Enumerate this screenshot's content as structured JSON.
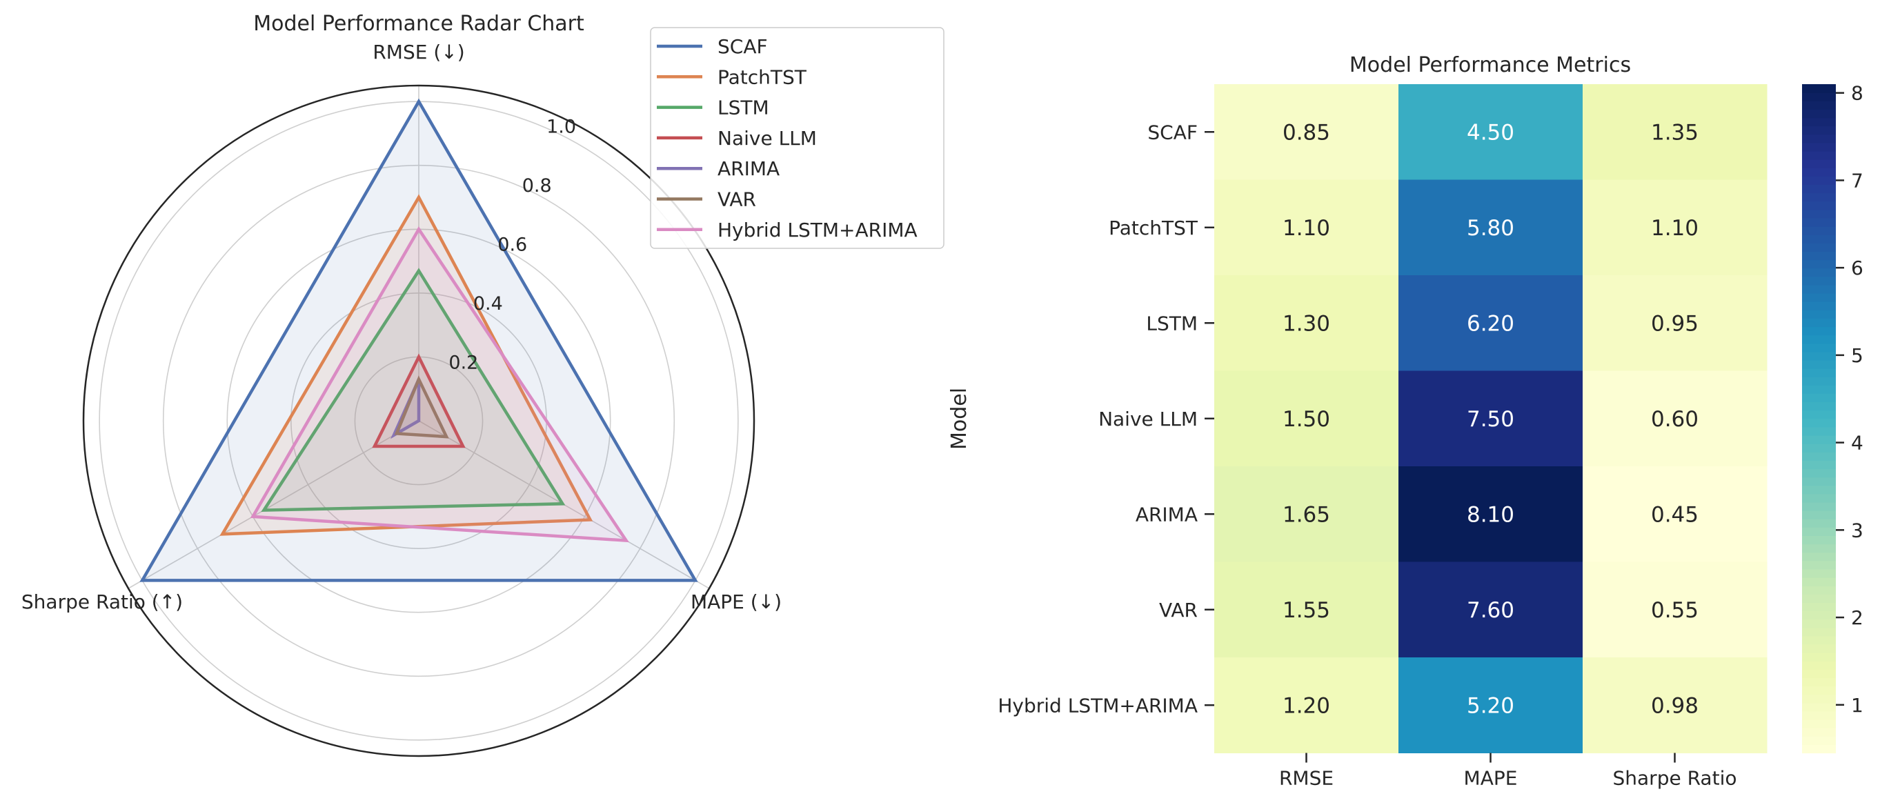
{
  "chart_data": [
    {
      "type": "radar",
      "title": "Model Performance Radar Chart",
      "axes": [
        "RMSE (↓)",
        "MAPE (↓)",
        "Sharpe Ratio (↑)"
      ],
      "radial_ticks": [
        "0.2",
        "0.4",
        "0.6",
        "0.8",
        "1.0"
      ],
      "radial_tick_values": [
        0.2,
        0.4,
        0.6,
        0.8,
        1.0
      ],
      "rmax": 1.05,
      "grid": true,
      "legend_position": "top-right",
      "series": [
        {
          "name": "SCAF",
          "color": "#4c72b0",
          "values": [
            1.0,
            1.0,
            1.0
          ]
        },
        {
          "name": "PatchTST",
          "color": "#dd8452",
          "values": [
            0.7,
            0.62,
            0.71
          ]
        },
        {
          "name": "LSTM",
          "color": "#55a868",
          "values": [
            0.47,
            0.52,
            0.56
          ]
        },
        {
          "name": "Naive LLM",
          "color": "#c44e52",
          "values": [
            0.2,
            0.16,
            0.16
          ]
        },
        {
          "name": "ARIMA",
          "color": "#8172b3",
          "values": [
            0.13,
            0.0,
            0.09
          ]
        },
        {
          "name": "VAR",
          "color": "#937860",
          "values": [
            0.13,
            0.1,
            0.08
          ]
        },
        {
          "name": "Hybrid LSTM+ARIMA",
          "color": "#da8bc3",
          "values": [
            0.6,
            0.75,
            0.6
          ]
        }
      ]
    },
    {
      "type": "heatmap",
      "title": "Model Performance Metrics",
      "ylabel": "Model",
      "xlabel": "",
      "columns": [
        "RMSE",
        "MAPE",
        "Sharpe Ratio"
      ],
      "rows": [
        "SCAF",
        "PatchTST",
        "LSTM",
        "Naive LLM",
        "ARIMA",
        "VAR",
        "Hybrid LSTM+ARIMA"
      ],
      "values": [
        [
          0.85,
          4.5,
          1.35
        ],
        [
          1.1,
          5.8,
          1.1
        ],
        [
          1.3,
          6.2,
          0.95
        ],
        [
          1.5,
          7.5,
          0.6
        ],
        [
          1.65,
          8.1,
          0.45
        ],
        [
          1.55,
          7.6,
          0.55
        ],
        [
          1.2,
          5.2,
          0.98
        ]
      ],
      "labels": [
        [
          "0.85",
          "4.50",
          "1.35"
        ],
        [
          "1.10",
          "5.80",
          "1.10"
        ],
        [
          "1.30",
          "6.20",
          "0.95"
        ],
        [
          "1.50",
          "7.50",
          "0.60"
        ],
        [
          "1.65",
          "8.10",
          "0.45"
        ],
        [
          "1.55",
          "7.60",
          "0.55"
        ],
        [
          "1.20",
          "5.20",
          "0.98"
        ]
      ],
      "colormap": "YlGnBu",
      "vmin": 0.45,
      "vmax": 8.1,
      "colorbar_ticks": [
        "1",
        "2",
        "3",
        "4",
        "5",
        "6",
        "7",
        "8"
      ],
      "colorbar_tick_values": [
        1,
        2,
        3,
        4,
        5,
        6,
        7,
        8
      ]
    }
  ]
}
